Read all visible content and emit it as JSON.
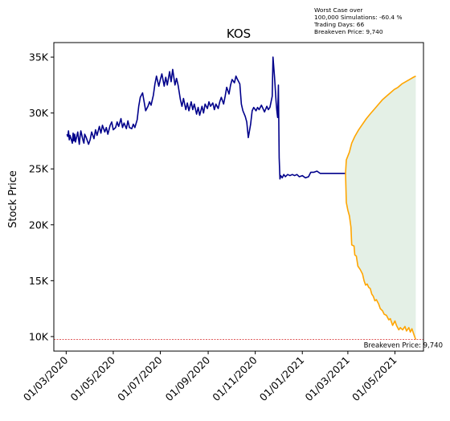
{
  "chart_data": {
    "type": "line",
    "title": "KOS",
    "ylabel": "Stock Price",
    "xlabel": "",
    "annotations": [
      "Worst Case over",
      "100,000 Simulations: -60.4 %",
      "Trading Days: 66",
      "Breakeven Price: 9,740"
    ],
    "breakeven": {
      "value": 9740,
      "label": "Breakeven Price: 9,740",
      "color": "#d62728"
    },
    "x_range": [
      "2020-02-14",
      "2021-06-07"
    ],
    "ylim": [
      8700,
      36300
    ],
    "x_ticks": [
      {
        "date": "2020-03-01",
        "label": "01/03/2020"
      },
      {
        "date": "2020-05-01",
        "label": "01/05/2020"
      },
      {
        "date": "2020-07-01",
        "label": "01/07/2020"
      },
      {
        "date": "2020-09-01",
        "label": "01/09/2020"
      },
      {
        "date": "2020-11-01",
        "label": "01/11/2020"
      },
      {
        "date": "2021-01-01",
        "label": "01/01/2021"
      },
      {
        "date": "2021-03-01",
        "label": "01/03/2021"
      },
      {
        "date": "2021-05-01",
        "label": "01/05/2021"
      }
    ],
    "y_ticks": [
      {
        "value": 10000,
        "label": "10K"
      },
      {
        "value": 15000,
        "label": "15K"
      },
      {
        "value": 20000,
        "label": "20K"
      },
      {
        "value": 25000,
        "label": "25K"
      },
      {
        "value": 30000,
        "label": "30K"
      },
      {
        "value": 35000,
        "label": "35K"
      }
    ],
    "grid": false,
    "series": [
      {
        "role": "history",
        "color": "#00008b",
        "points": [
          [
            "2020-03-02",
            28100
          ],
          [
            "2020-03-03",
            27900
          ],
          [
            "2020-03-04",
            28400
          ],
          [
            "2020-03-05",
            27600
          ],
          [
            "2020-03-06",
            28000
          ],
          [
            "2020-03-09",
            27300
          ],
          [
            "2020-03-10",
            28200
          ],
          [
            "2020-03-11",
            27500
          ],
          [
            "2020-03-12",
            28100
          ],
          [
            "2020-03-13",
            27400
          ],
          [
            "2020-03-16",
            28300
          ],
          [
            "2020-03-17",
            27700
          ],
          [
            "2020-03-18",
            27200
          ],
          [
            "2020-03-19",
            27900
          ],
          [
            "2020-03-20",
            28400
          ],
          [
            "2020-03-23",
            27500
          ],
          [
            "2020-03-24",
            27300
          ],
          [
            "2020-03-25",
            28100
          ],
          [
            "2020-03-27",
            27800
          ],
          [
            "2020-03-30",
            27200
          ],
          [
            "2020-04-01",
            27600
          ],
          [
            "2020-04-03",
            28300
          ],
          [
            "2020-04-06",
            27700
          ],
          [
            "2020-04-08",
            28500
          ],
          [
            "2020-04-10",
            28000
          ],
          [
            "2020-04-13",
            28800
          ],
          [
            "2020-04-15",
            28200
          ],
          [
            "2020-04-17",
            28900
          ],
          [
            "2020-04-20",
            28300
          ],
          [
            "2020-04-22",
            28700
          ],
          [
            "2020-04-24",
            28100
          ],
          [
            "2020-04-27",
            28900
          ],
          [
            "2020-04-29",
            29200
          ],
          [
            "2020-05-01",
            28500
          ],
          [
            "2020-05-04",
            28700
          ],
          [
            "2020-05-06",
            29200
          ],
          [
            "2020-05-08",
            28800
          ],
          [
            "2020-05-11",
            29500
          ],
          [
            "2020-05-13",
            28700
          ],
          [
            "2020-05-15",
            29100
          ],
          [
            "2020-05-18",
            28600
          ],
          [
            "2020-05-20",
            29300
          ],
          [
            "2020-05-22",
            28700
          ],
          [
            "2020-05-25",
            28600
          ],
          [
            "2020-05-27",
            29000
          ],
          [
            "2020-05-29",
            28700
          ],
          [
            "2020-06-01",
            29400
          ],
          [
            "2020-06-03",
            30600
          ],
          [
            "2020-06-05",
            31400
          ],
          [
            "2020-06-08",
            31800
          ],
          [
            "2020-06-10",
            31000
          ],
          [
            "2020-06-12",
            30200
          ],
          [
            "2020-06-15",
            30600
          ],
          [
            "2020-06-17",
            31000
          ],
          [
            "2020-06-19",
            30700
          ],
          [
            "2020-06-22",
            31600
          ],
          [
            "2020-06-24",
            32600
          ],
          [
            "2020-06-26",
            33300
          ],
          [
            "2020-06-29",
            32400
          ],
          [
            "2020-07-01",
            33000
          ],
          [
            "2020-07-03",
            33500
          ],
          [
            "2020-07-06",
            32400
          ],
          [
            "2020-07-08",
            33200
          ],
          [
            "2020-07-10",
            32500
          ],
          [
            "2020-07-13",
            33700
          ],
          [
            "2020-07-15",
            32800
          ],
          [
            "2020-07-17",
            33900
          ],
          [
            "2020-07-20",
            32500
          ],
          [
            "2020-07-22",
            33100
          ],
          [
            "2020-07-24",
            32500
          ],
          [
            "2020-07-27",
            31200
          ],
          [
            "2020-07-29",
            30600
          ],
          [
            "2020-07-31",
            31300
          ],
          [
            "2020-08-03",
            30300
          ],
          [
            "2020-08-05",
            30900
          ],
          [
            "2020-08-07",
            30200
          ],
          [
            "2020-08-10",
            31000
          ],
          [
            "2020-08-12",
            30300
          ],
          [
            "2020-08-14",
            30800
          ],
          [
            "2020-08-17",
            29900
          ],
          [
            "2020-08-19",
            30500
          ],
          [
            "2020-08-21",
            29800
          ],
          [
            "2020-08-24",
            30600
          ],
          [
            "2020-08-26",
            30000
          ],
          [
            "2020-08-28",
            30800
          ],
          [
            "2020-08-31",
            30400
          ],
          [
            "2020-09-02",
            31000
          ],
          [
            "2020-09-04",
            30600
          ],
          [
            "2020-09-07",
            30900
          ],
          [
            "2020-09-09",
            30300
          ],
          [
            "2020-09-11",
            30800
          ],
          [
            "2020-09-14",
            30400
          ],
          [
            "2020-09-16",
            31000
          ],
          [
            "2020-09-18",
            31400
          ],
          [
            "2020-09-21",
            30800
          ],
          [
            "2020-09-23",
            31500
          ],
          [
            "2020-09-25",
            32300
          ],
          [
            "2020-09-28",
            31700
          ],
          [
            "2020-09-30",
            32500
          ],
          [
            "2020-10-02",
            33000
          ],
          [
            "2020-10-05",
            32700
          ],
          [
            "2020-10-07",
            33300
          ],
          [
            "2020-10-09",
            33000
          ],
          [
            "2020-10-12",
            32600
          ],
          [
            "2020-10-14",
            30800
          ],
          [
            "2020-10-16",
            30200
          ],
          [
            "2020-10-19",
            29700
          ],
          [
            "2020-10-21",
            29200
          ],
          [
            "2020-10-23",
            27800
          ],
          [
            "2020-10-26",
            29000
          ],
          [
            "2020-10-28",
            30200
          ],
          [
            "2020-10-30",
            30500
          ],
          [
            "2020-11-02",
            30200
          ],
          [
            "2020-11-04",
            30500
          ],
          [
            "2020-11-06",
            30300
          ],
          [
            "2020-11-09",
            30700
          ],
          [
            "2020-11-11",
            30400
          ],
          [
            "2020-11-13",
            30100
          ],
          [
            "2020-11-16",
            30600
          ],
          [
            "2020-11-18",
            30300
          ],
          [
            "2020-11-20",
            30500
          ],
          [
            "2020-11-23",
            31500
          ],
          [
            "2020-11-24",
            35000
          ],
          [
            "2020-11-26",
            33200
          ],
          [
            "2020-11-28",
            31000
          ],
          [
            "2020-11-29",
            30200
          ],
          [
            "2020-11-30",
            29600
          ],
          [
            "2020-12-01",
            32500
          ],
          [
            "2020-12-02",
            26000
          ],
          [
            "2020-12-03",
            24100
          ],
          [
            "2020-12-04",
            24400
          ],
          [
            "2020-12-06",
            24200
          ],
          [
            "2020-12-08",
            24500
          ],
          [
            "2020-12-10",
            24300
          ],
          [
            "2020-12-13",
            24500
          ],
          [
            "2020-12-16",
            24400
          ],
          [
            "2020-12-19",
            24500
          ],
          [
            "2020-12-22",
            24400
          ],
          [
            "2020-12-25",
            24500
          ],
          [
            "2020-12-28",
            24300
          ],
          [
            "2021-01-01",
            24400
          ],
          [
            "2021-01-05",
            24200
          ],
          [
            "2021-01-09",
            24300
          ],
          [
            "2021-01-12",
            24700
          ],
          [
            "2021-01-16",
            24700
          ],
          [
            "2021-01-20",
            24800
          ],
          [
            "2021-01-24",
            24600
          ],
          [
            "2021-01-28",
            24600
          ],
          [
            "2021-02-04",
            24600
          ],
          [
            "2021-02-11",
            24600
          ],
          [
            "2021-02-18",
            24600
          ],
          [
            "2021-02-26",
            24600
          ]
        ]
      },
      {
        "role": "upper-bound",
        "color": "#ffa500",
        "points": [
          [
            "2021-02-26",
            24600
          ],
          [
            "2021-02-27",
            25800
          ],
          [
            "2021-03-03",
            26500
          ],
          [
            "2021-03-06",
            27300
          ],
          [
            "2021-03-10",
            27900
          ],
          [
            "2021-03-15",
            28500
          ],
          [
            "2021-03-20",
            29000
          ],
          [
            "2021-03-25",
            29500
          ],
          [
            "2021-03-31",
            30000
          ],
          [
            "2021-04-05",
            30400
          ],
          [
            "2021-04-10",
            30800
          ],
          [
            "2021-04-15",
            31200
          ],
          [
            "2021-04-20",
            31500
          ],
          [
            "2021-04-25",
            31800
          ],
          [
            "2021-04-30",
            32100
          ],
          [
            "2021-05-05",
            32300
          ],
          [
            "2021-05-10",
            32600
          ],
          [
            "2021-05-15",
            32800
          ],
          [
            "2021-05-20",
            33000
          ],
          [
            "2021-05-25",
            33200
          ],
          [
            "2021-05-28",
            33300
          ]
        ]
      },
      {
        "role": "lower-bound",
        "color": "#ffa500",
        "points": [
          [
            "2021-02-26",
            24600
          ],
          [
            "2021-02-27",
            22000
          ],
          [
            "2021-03-01",
            21300
          ],
          [
            "2021-03-03",
            20800
          ],
          [
            "2021-03-05",
            19800
          ],
          [
            "2021-03-06",
            18200
          ],
          [
            "2021-03-09",
            18100
          ],
          [
            "2021-03-10",
            17300
          ],
          [
            "2021-03-12",
            17200
          ],
          [
            "2021-03-14",
            16300
          ],
          [
            "2021-03-17",
            16000
          ],
          [
            "2021-03-20",
            15600
          ],
          [
            "2021-03-22",
            15000
          ],
          [
            "2021-03-24",
            14600
          ],
          [
            "2021-03-26",
            14700
          ],
          [
            "2021-03-28",
            14400
          ],
          [
            "2021-03-30",
            14300
          ],
          [
            "2021-04-01",
            13800
          ],
          [
            "2021-04-03",
            13600
          ],
          [
            "2021-04-05",
            13200
          ],
          [
            "2021-04-07",
            13300
          ],
          [
            "2021-04-10",
            12900
          ],
          [
            "2021-04-12",
            12500
          ],
          [
            "2021-04-15",
            12300
          ],
          [
            "2021-04-17",
            12000
          ],
          [
            "2021-04-20",
            11900
          ],
          [
            "2021-04-23",
            11500
          ],
          [
            "2021-04-25",
            11600
          ],
          [
            "2021-04-28",
            11000
          ],
          [
            "2021-05-01",
            11400
          ],
          [
            "2021-05-03",
            11000
          ],
          [
            "2021-05-06",
            10600
          ],
          [
            "2021-05-08",
            10800
          ],
          [
            "2021-05-11",
            10600
          ],
          [
            "2021-05-14",
            10900
          ],
          [
            "2021-05-16",
            10500
          ],
          [
            "2021-05-19",
            10800
          ],
          [
            "2021-05-21",
            10400
          ],
          [
            "2021-05-23",
            10700
          ],
          [
            "2021-05-25",
            10300
          ],
          [
            "2021-05-27",
            9900
          ],
          [
            "2021-05-28",
            9740
          ]
        ]
      }
    ],
    "fill": {
      "between": [
        "upper-bound",
        "lower-bound"
      ],
      "color": "#2e8b3a",
      "opacity": 0.13
    }
  }
}
